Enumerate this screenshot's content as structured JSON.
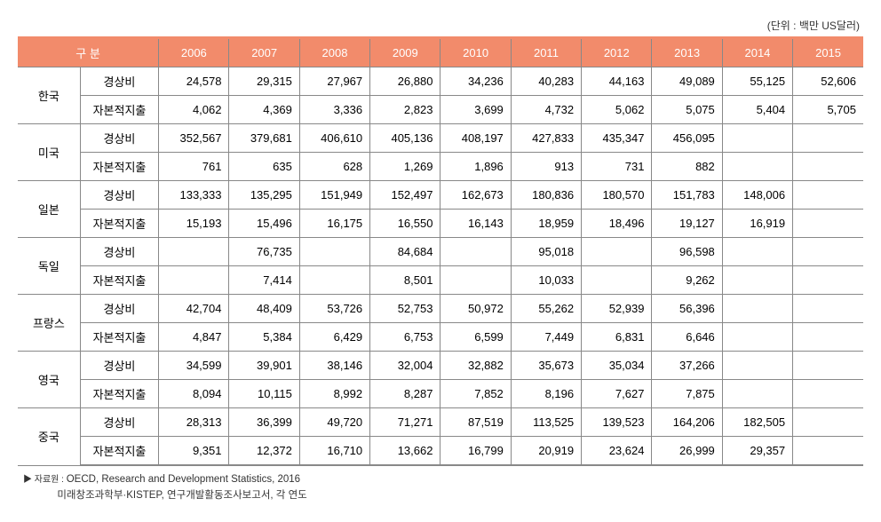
{
  "unit_text": "(단위 : 백만 US달러)",
  "header": {
    "col1": "구  분",
    "years": [
      "2006",
      "2007",
      "2008",
      "2009",
      "2010",
      "2011",
      "2012",
      "2013",
      "2014",
      "2015"
    ]
  },
  "row_types": {
    "current": "경상비",
    "capital": "자본적지출"
  },
  "countries": [
    {
      "name": "한국",
      "current": [
        "24,578",
        "29,315",
        "27,967",
        "26,880",
        "34,236",
        "40,283",
        "44,163",
        "49,089",
        "55,125",
        "52,606"
      ],
      "capital": [
        "4,062",
        "4,369",
        "3,336",
        "2,823",
        "3,699",
        "4,732",
        "5,062",
        "5,075",
        "5,404",
        "5,705"
      ]
    },
    {
      "name": "미국",
      "current": [
        "352,567",
        "379,681",
        "406,610",
        "405,136",
        "408,197",
        "427,833",
        "435,347",
        "456,095",
        "",
        ""
      ],
      "capital": [
        "761",
        "635",
        "628",
        "1,269",
        "1,896",
        "913",
        "731",
        "882",
        "",
        ""
      ]
    },
    {
      "name": "일본",
      "current": [
        "133,333",
        "135,295",
        "151,949",
        "152,497",
        "162,673",
        "180,836",
        "180,570",
        "151,783",
        "148,006",
        ""
      ],
      "capital": [
        "15,193",
        "15,496",
        "16,175",
        "16,550",
        "16,143",
        "18,959",
        "18,496",
        "19,127",
        "16,919",
        ""
      ]
    },
    {
      "name": "독일",
      "current": [
        "",
        "76,735",
        "",
        "84,684",
        "",
        "95,018",
        "",
        "96,598",
        "",
        ""
      ],
      "capital": [
        "",
        "7,414",
        "",
        "8,501",
        "",
        "10,033",
        "",
        "9,262",
        "",
        ""
      ]
    },
    {
      "name": "프랑스",
      "current": [
        "42,704",
        "48,409",
        "53,726",
        "52,753",
        "50,972",
        "55,262",
        "52,939",
        "56,396",
        "",
        ""
      ],
      "capital": [
        "4,847",
        "5,384",
        "6,429",
        "6,753",
        "6,599",
        "7,449",
        "6,831",
        "6,646",
        "",
        ""
      ]
    },
    {
      "name": "영국",
      "current": [
        "34,599",
        "39,901",
        "38,146",
        "32,004",
        "32,882",
        "35,673",
        "35,034",
        "37,266",
        "",
        ""
      ],
      "capital": [
        "8,094",
        "10,115",
        "8,992",
        "8,287",
        "7,852",
        "8,196",
        "7,627",
        "7,875",
        "",
        ""
      ]
    },
    {
      "name": "중국",
      "current": [
        "28,313",
        "36,399",
        "49,720",
        "71,271",
        "87,519",
        "113,525",
        "139,523",
        "164,206",
        "182,505",
        ""
      ],
      "capital": [
        "9,351",
        "12,372",
        "16,710",
        "13,662",
        "16,799",
        "20,919",
        "23,624",
        "26,999",
        "29,357",
        ""
      ]
    }
  ],
  "source": {
    "line1_prefix": "▶ 자료원 : ",
    "line1": "OECD, Research and Development Statistics, 2016",
    "line2": "미래창조과학부·KISTEP,  연구개발활동조사보고서, 각 연도"
  },
  "colors": {
    "header_bg": "#f28b6b",
    "header_text": "#ffffff",
    "border": "#888888",
    "background": "#ffffff"
  }
}
